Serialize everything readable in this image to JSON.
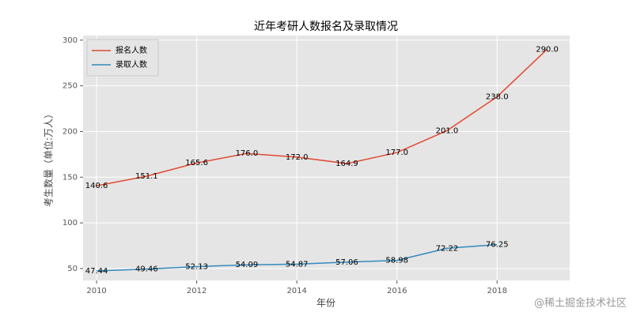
{
  "chart_data": {
    "type": "line",
    "title": "近年考研人数报名及录取情况",
    "x_label": "年份",
    "y_label": "考生数量（单位:万人）",
    "x": [
      2010,
      2011,
      2012,
      2013,
      2014,
      2015,
      2016,
      2017,
      2018,
      2019
    ],
    "series": [
      {
        "name": "报名人数",
        "color": "#e24a33",
        "values": [
          140.6,
          151.1,
          165.6,
          176.0,
          172.0,
          164.9,
          177.0,
          201.0,
          238.0,
          290.0
        ],
        "value_labels": [
          "140.6",
          "151.1",
          "165.6",
          "176.0",
          "172.0",
          "164.9",
          "177.0",
          "201.0",
          "238.0",
          "290.0"
        ]
      },
      {
        "name": "录取人数",
        "color": "#348abd",
        "values": [
          47.44,
          49.46,
          52.13,
          54.09,
          54.87,
          57.06,
          58.98,
          72.22,
          76.25,
          null
        ],
        "value_labels": [
          "47.44",
          "49.46",
          "52.13",
          "54.09",
          "54.87",
          "57.06",
          "58.98",
          "72.22",
          "76.25",
          null
        ]
      }
    ],
    "xlim": [
      2009.73,
      2019.45
    ],
    "xticks": [
      2010,
      2012,
      2014,
      2016,
      2018
    ],
    "ylim": [
      37,
      305
    ],
    "yticks": [
      50,
      100,
      150,
      200,
      250,
      300
    ],
    "grid": true,
    "legend": "upper left",
    "watermark": "@稀土掘金技术社区"
  }
}
